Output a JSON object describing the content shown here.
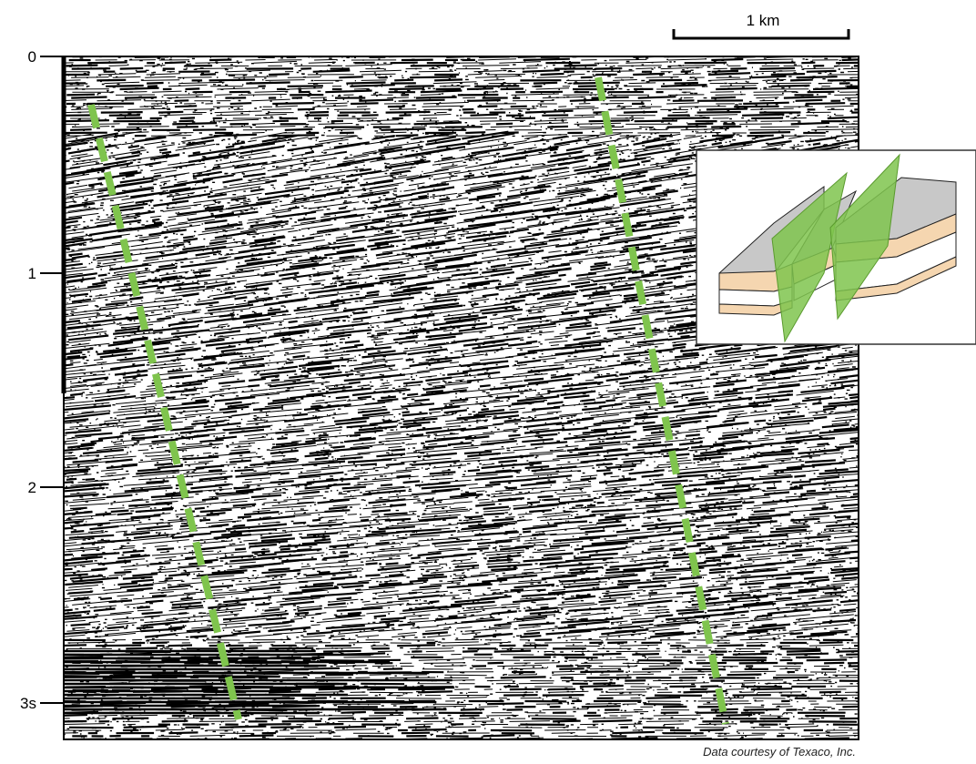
{
  "scale_bar": {
    "label": "1 km"
  },
  "axis": {
    "tick_labels": [
      "0",
      "1",
      "2",
      "3s"
    ]
  },
  "credit": "Data courtesy of Texaco, Inc."
}
